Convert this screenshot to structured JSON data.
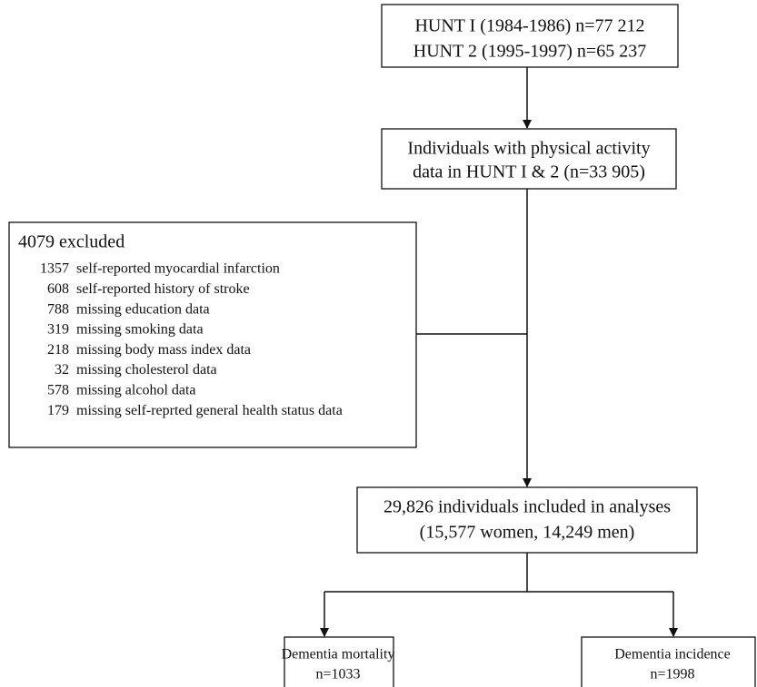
{
  "nodes": [
    {
      "lines": [
        "HUNT I (1984-1986) n=77 212",
        "HUNT 2 (1995-1997) n=65 237"
      ]
    },
    {
      "lines": [
        "Individuals with physical activity",
        "data in HUNT I & 2 (n=33 905)"
      ]
    },
    {
      "lines": [
        "29,826 individuals included in analyses",
        "(15,577 women, 14,249 men)"
      ]
    },
    {
      "lines": [
        "Dementia mortality",
        "n=1033"
      ]
    },
    {
      "lines": [
        "Dementia incidence",
        "n=1998"
      ]
    }
  ],
  "excluded": {
    "title": "4079 excluded",
    "items": [
      {
        "count": "1357",
        "label": "self-reported myocardial infarction"
      },
      {
        "count": "608",
        "label": "self-reported history of stroke"
      },
      {
        "count": "788",
        "label": "missing education data"
      },
      {
        "count": "319",
        "label": "missing smoking data"
      },
      {
        "count": "218",
        "label": "missing body mass index data"
      },
      {
        "count": "32",
        "label": "missing cholesterol data"
      },
      {
        "count": "578",
        "label": "missing alcohol data"
      },
      {
        "count": "179",
        "label": "missing self-reprted general health status data"
      }
    ]
  }
}
